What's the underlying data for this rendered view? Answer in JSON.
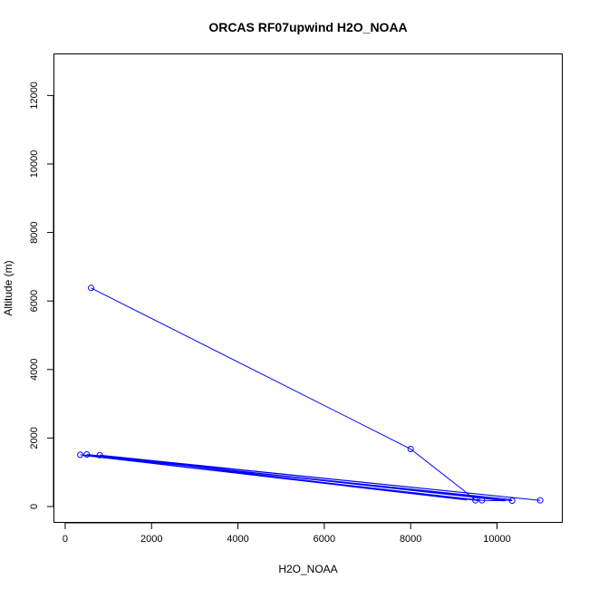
{
  "chart_data": {
    "type": "line",
    "title": "ORCAS RF07upwind H2O_NOAA",
    "xlabel": "H2O_NOAA",
    "ylabel": "Altitude (m)",
    "xlim": [
      -250,
      11500
    ],
    "ylim": [
      -450,
      13200
    ],
    "x_ticks": [
      0,
      2000,
      4000,
      6000,
      8000,
      10000
    ],
    "y_ticks": [
      0,
      2000,
      4000,
      6000,
      8000,
      10000,
      12000
    ],
    "series_color": "#0000ff",
    "series": [
      {
        "points": [
          [
            600,
            6380
          ],
          [
            8000,
            1680
          ],
          [
            9300,
            400
          ],
          [
            9500,
            180
          ],
          [
            9600,
            170
          ],
          [
            350,
            1510
          ],
          [
            10300,
            210
          ],
          [
            10350,
            170
          ],
          [
            500,
            1520
          ],
          [
            11000,
            180
          ],
          [
            800,
            1500
          ],
          [
            9300,
            190
          ],
          [
            450,
            1490
          ],
          [
            9650,
            180
          ],
          [
            10200,
            170
          ],
          [
            600,
            1500
          ]
        ],
        "markers": [
          [
            600,
            6380
          ],
          [
            8000,
            1680
          ],
          [
            350,
            1510
          ],
          [
            500,
            1520
          ],
          [
            800,
            1500
          ],
          [
            9500,
            180
          ],
          [
            9650,
            180
          ],
          [
            10350,
            170
          ],
          [
            11000,
            180
          ]
        ]
      }
    ]
  }
}
